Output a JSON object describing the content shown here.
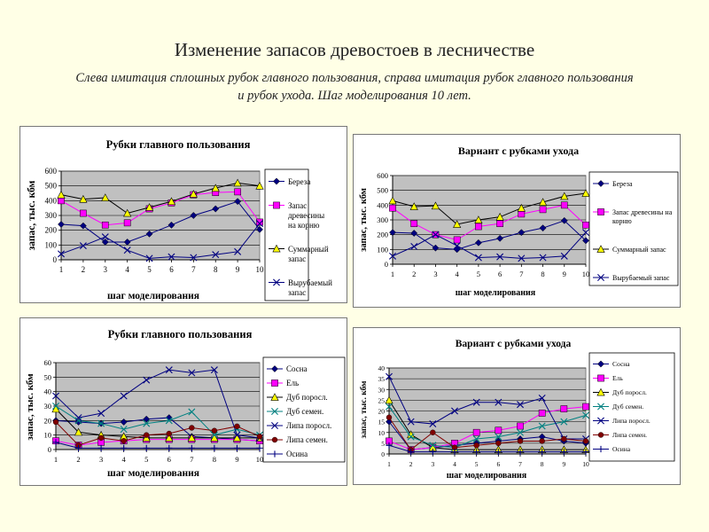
{
  "slide": {
    "title": "Изменение запасов древостоев в лесничестве",
    "subtitle_line1": "Слева имитация сплошных рубок главного пользования, справа имитация рубок главного пользования",
    "subtitle_line2": "и рубок ухода. Шаг моделирования 10 лет."
  },
  "colors": {
    "background": "#ffffe6",
    "plot_area": "#c0c0c0",
    "navy": "#000080",
    "magenta": "#ff00ff",
    "yellow": "#ffff00",
    "teal": "#008080",
    "dark_red": "#800000"
  },
  "chart_data": [
    {
      "type": "line",
      "title": "Рубки главного пользования",
      "xlabel": "шаг моделирования",
      "ylabel": "запас, тыс. кбм",
      "categories": [
        "1",
        "2",
        "3",
        "4",
        "5",
        "6",
        "7",
        "8",
        "9",
        "10"
      ],
      "ylim": [
        0,
        600
      ],
      "yticks": [
        0,
        100,
        200,
        300,
        400,
        500,
        600
      ],
      "grid": true,
      "legend_position": "right",
      "series": [
        {
          "name": "Береза",
          "color": "#000080",
          "marker": "diamond",
          "values": [
            240,
            230,
            120,
            120,
            175,
            235,
            300,
            345,
            395,
            205
          ]
        },
        {
          "name": "Запас древесины на корню",
          "color": "#ff00ff",
          "marker": "square",
          "values": [
            400,
            315,
            235,
            250,
            345,
            385,
            440,
            455,
            460,
            255
          ]
        },
        {
          "name": "Суммарный запас",
          "color": "#ffff00",
          "marker": "triangle",
          "values": [
            440,
            410,
            420,
            315,
            355,
            395,
            445,
            485,
            520,
            500
          ]
        },
        {
          "name": "Вырубаемый запас",
          "color": "#000080",
          "marker": "x",
          "values": [
            40,
            95,
            155,
            65,
            10,
            20,
            15,
            35,
            55,
            245
          ]
        }
      ]
    },
    {
      "type": "line",
      "title": "Вариант с рубками ухода",
      "xlabel": "шаг моделирования",
      "ylabel": "запас, тыс. кбм",
      "categories": [
        "1",
        "2",
        "3",
        "4",
        "5",
        "6",
        "7",
        "8",
        "9",
        "10"
      ],
      "ylim": [
        0,
        600
      ],
      "yticks": [
        0,
        100,
        200,
        300,
        400,
        500,
        600
      ],
      "grid": true,
      "legend_position": "right",
      "series": [
        {
          "name": "Береза",
          "color": "#000080",
          "marker": "diamond",
          "values": [
            215,
            210,
            110,
            100,
            145,
            175,
            215,
            245,
            295,
            160
          ]
        },
        {
          "name": "Запас древесины на корню",
          "color": "#ff00ff",
          "marker": "square",
          "values": [
            380,
            275,
            200,
            165,
            255,
            275,
            340,
            370,
            400,
            265
          ]
        },
        {
          "name": "Суммарный запас",
          "color": "#ffff00",
          "marker": "triangle",
          "values": [
            430,
            390,
            395,
            270,
            300,
            320,
            380,
            420,
            460,
            480
          ]
        },
        {
          "name": "Вырубаемый запас",
          "color": "#000080",
          "marker": "x",
          "values": [
            55,
            120,
            200,
            125,
            45,
            50,
            40,
            45,
            55,
            215
          ]
        }
      ]
    },
    {
      "type": "line",
      "title": "Рубки главного пользования",
      "xlabel": "шаг моделирования",
      "ylabel": "запас, тыс. кбм",
      "categories": [
        "1",
        "2",
        "3",
        "4",
        "5",
        "6",
        "7",
        "8",
        "9",
        "10"
      ],
      "ylim": [
        0,
        60
      ],
      "yticks": [
        0,
        10,
        20,
        30,
        40,
        50,
        60
      ],
      "grid": true,
      "legend_position": "right",
      "series": [
        {
          "name": "Сосна",
          "color": "#000080",
          "marker": "diamond",
          "values": [
            20,
            19,
            18,
            19,
            21,
            22,
            9,
            8,
            7,
            6
          ]
        },
        {
          "name": "Ель",
          "color": "#ff00ff",
          "marker": "square",
          "values": [
            6,
            3,
            5,
            6,
            7,
            7,
            7,
            7,
            7,
            6
          ]
        },
        {
          "name": "Дуб поросл.",
          "color": "#ffff00",
          "marker": "triangle",
          "values": [
            28,
            12,
            10,
            9,
            8,
            8,
            8,
            8,
            8,
            8
          ]
        },
        {
          "name": "Дуб семен.",
          "color": "#008080",
          "marker": "x",
          "values": [
            30,
            20,
            18,
            14,
            18,
            20,
            26,
            10,
            14,
            10
          ]
        },
        {
          "name": "Липа поросл.",
          "color": "#000080",
          "marker": "x",
          "values": [
            37,
            22,
            25,
            37,
            48,
            55,
            53,
            55,
            10,
            8
          ]
        },
        {
          "name": "Липа семен.",
          "color": "#800000",
          "marker": "circle",
          "values": [
            19,
            3,
            8,
            6,
            10,
            11,
            15,
            13,
            16,
            9
          ]
        },
        {
          "name": "Осина",
          "color": "#000080",
          "marker": "plus",
          "values": [
            5,
            1,
            1,
            1,
            1,
            1,
            1,
            1,
            1,
            1
          ]
        }
      ]
    },
    {
      "type": "line",
      "title": "Вариант с рубками ухода",
      "xlabel": "шаг моделирования",
      "ylabel": "запас, тыс. кбм",
      "categories": [
        "1",
        "2",
        "3",
        "4",
        "5",
        "6",
        "7",
        "8",
        "9",
        "10"
      ],
      "ylim": [
        0,
        40
      ],
      "yticks": [
        0,
        5,
        10,
        15,
        20,
        25,
        30,
        35,
        40
      ],
      "grid": true,
      "legend_position": "right",
      "series": [
        {
          "name": "Сосна",
          "color": "#000080",
          "marker": "diamond",
          "values": [
            15,
            2,
            3,
            4,
            5,
            6,
            7,
            8,
            6,
            5
          ]
        },
        {
          "name": "Ель",
          "color": "#ff00ff",
          "marker": "square",
          "values": [
            6,
            2,
            3,
            5,
            10,
            11,
            13,
            19,
            21,
            22
          ]
        },
        {
          "name": "Дуб поросл.",
          "color": "#ffff00",
          "marker": "triangle",
          "values": [
            25,
            9,
            3,
            2,
            2,
            2,
            2,
            2,
            2,
            2
          ]
        },
        {
          "name": "Дуб семен.",
          "color": "#008080",
          "marker": "x",
          "values": [
            22,
            8,
            4,
            3,
            7,
            8,
            10,
            13,
            15,
            18
          ]
        },
        {
          "name": "Липа поросл.",
          "color": "#000080",
          "marker": "x",
          "values": [
            36,
            15,
            14,
            20,
            24,
            24,
            23,
            26,
            7,
            7
          ]
        },
        {
          "name": "Липа семен.",
          "color": "#800000",
          "marker": "circle",
          "values": [
            17,
            2,
            10,
            3,
            4,
            5,
            6,
            6,
            7,
            6
          ]
        },
        {
          "name": "Осина",
          "color": "#000080",
          "marker": "plus",
          "values": [
            4,
            1,
            1,
            1,
            1,
            1,
            1,
            1,
            1,
            1
          ]
        }
      ]
    }
  ]
}
